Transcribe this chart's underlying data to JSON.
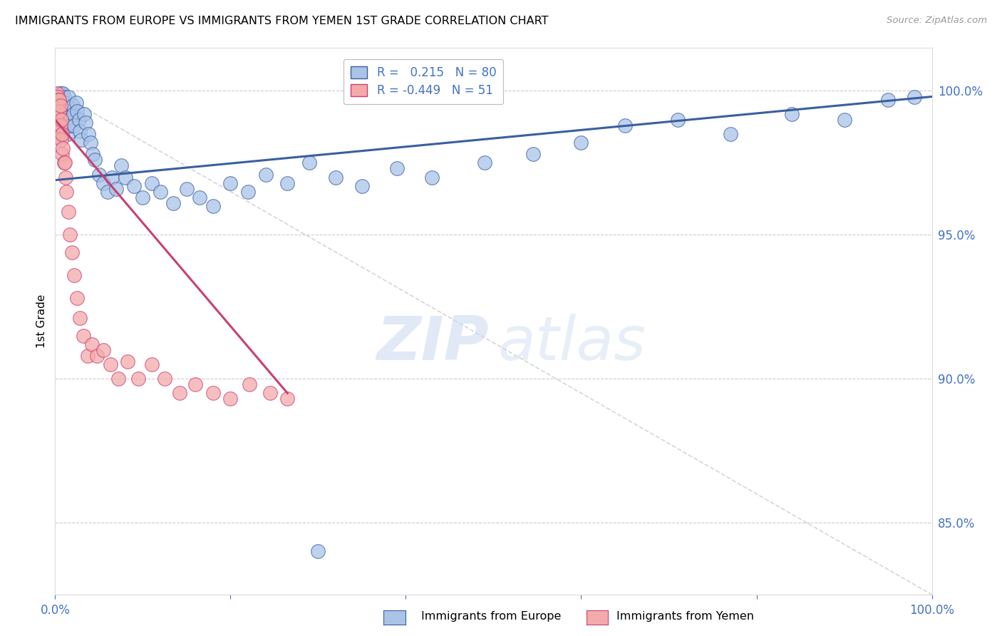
{
  "title": "IMMIGRANTS FROM EUROPE VS IMMIGRANTS FROM YEMEN 1ST GRADE CORRELATION CHART",
  "source": "Source: ZipAtlas.com",
  "ylabel": "1st Grade",
  "ylabel_right_ticks": [
    "100.0%",
    "95.0%",
    "90.0%",
    "85.0%"
  ],
  "ylabel_right_vals": [
    1.0,
    0.95,
    0.9,
    0.85
  ],
  "legend1_label": "Immigrants from Europe",
  "legend2_label": "Immigrants from Yemen",
  "R_blue": 0.215,
  "N_blue": 80,
  "R_pink": -0.449,
  "N_pink": 51,
  "color_blue": "#aac4e8",
  "color_pink": "#f4aaaa",
  "line_blue": "#3a5fa0",
  "line_pink": "#c94070",
  "watermark_zip": "ZIP",
  "watermark_atlas": "atlas",
  "xlim": [
    0.0,
    1.0
  ],
  "ylim": [
    0.825,
    1.015
  ],
  "blue_trend_x": [
    0.0,
    1.0
  ],
  "blue_trend_y": [
    0.969,
    0.998
  ],
  "pink_trend_x": [
    0.0,
    0.265
  ],
  "pink_trend_y": [
    0.99,
    0.895
  ],
  "ref_line_x": [
    0.0,
    1.0
  ],
  "ref_line_y": [
    1.0,
    0.825
  ],
  "blue_x": [
    0.001,
    0.002,
    0.002,
    0.003,
    0.003,
    0.003,
    0.004,
    0.004,
    0.004,
    0.005,
    0.005,
    0.005,
    0.006,
    0.006,
    0.007,
    0.007,
    0.007,
    0.008,
    0.008,
    0.009,
    0.009,
    0.01,
    0.01,
    0.011,
    0.012,
    0.013,
    0.014,
    0.015,
    0.016,
    0.017,
    0.018,
    0.02,
    0.021,
    0.022,
    0.024,
    0.025,
    0.027,
    0.028,
    0.03,
    0.033,
    0.035,
    0.038,
    0.04,
    0.043,
    0.045,
    0.05,
    0.055,
    0.06,
    0.065,
    0.07,
    0.075,
    0.08,
    0.09,
    0.1,
    0.11,
    0.12,
    0.135,
    0.15,
    0.165,
    0.18,
    0.2,
    0.22,
    0.24,
    0.265,
    0.29,
    0.32,
    0.35,
    0.39,
    0.43,
    0.49,
    0.545,
    0.6,
    0.65,
    0.71,
    0.77,
    0.84,
    0.9,
    0.95,
    0.3,
    0.98
  ],
  "blue_y": [
    0.992,
    0.99,
    0.985,
    0.998,
    0.994,
    0.988,
    0.996,
    0.992,
    0.987,
    0.999,
    0.994,
    0.985,
    0.998,
    0.99,
    0.999,
    0.994,
    0.988,
    0.996,
    0.99,
    0.999,
    0.993,
    0.998,
    0.99,
    0.996,
    0.993,
    0.99,
    0.985,
    0.998,
    0.994,
    0.991,
    0.988,
    0.995,
    0.992,
    0.988,
    0.996,
    0.993,
    0.99,
    0.986,
    0.983,
    0.992,
    0.989,
    0.985,
    0.982,
    0.978,
    0.976,
    0.971,
    0.968,
    0.965,
    0.97,
    0.966,
    0.974,
    0.97,
    0.967,
    0.963,
    0.968,
    0.965,
    0.961,
    0.966,
    0.963,
    0.96,
    0.968,
    0.965,
    0.971,
    0.968,
    0.975,
    0.97,
    0.967,
    0.973,
    0.97,
    0.975,
    0.978,
    0.982,
    0.988,
    0.99,
    0.985,
    0.992,
    0.99,
    0.997,
    0.84,
    0.998
  ],
  "pink_x": [
    0.001,
    0.001,
    0.001,
    0.002,
    0.002,
    0.002,
    0.002,
    0.003,
    0.003,
    0.003,
    0.003,
    0.004,
    0.004,
    0.004,
    0.005,
    0.005,
    0.006,
    0.006,
    0.007,
    0.007,
    0.008,
    0.008,
    0.009,
    0.01,
    0.011,
    0.012,
    0.013,
    0.015,
    0.017,
    0.019,
    0.022,
    0.025,
    0.028,
    0.032,
    0.037,
    0.042,
    0.048,
    0.055,
    0.063,
    0.072,
    0.083,
    0.095,
    0.11,
    0.125,
    0.142,
    0.16,
    0.18,
    0.2,
    0.222,
    0.245,
    0.265
  ],
  "pink_y": [
    0.998,
    0.994,
    0.99,
    0.999,
    0.995,
    0.991,
    0.986,
    0.998,
    0.994,
    0.989,
    0.984,
    0.997,
    0.993,
    0.988,
    0.997,
    0.993,
    0.995,
    0.988,
    0.99,
    0.983,
    0.985,
    0.978,
    0.98,
    0.975,
    0.975,
    0.97,
    0.965,
    0.958,
    0.95,
    0.944,
    0.936,
    0.928,
    0.921,
    0.915,
    0.908,
    0.912,
    0.908,
    0.91,
    0.905,
    0.9,
    0.906,
    0.9,
    0.905,
    0.9,
    0.895,
    0.898,
    0.895,
    0.893,
    0.898,
    0.895,
    0.893
  ]
}
